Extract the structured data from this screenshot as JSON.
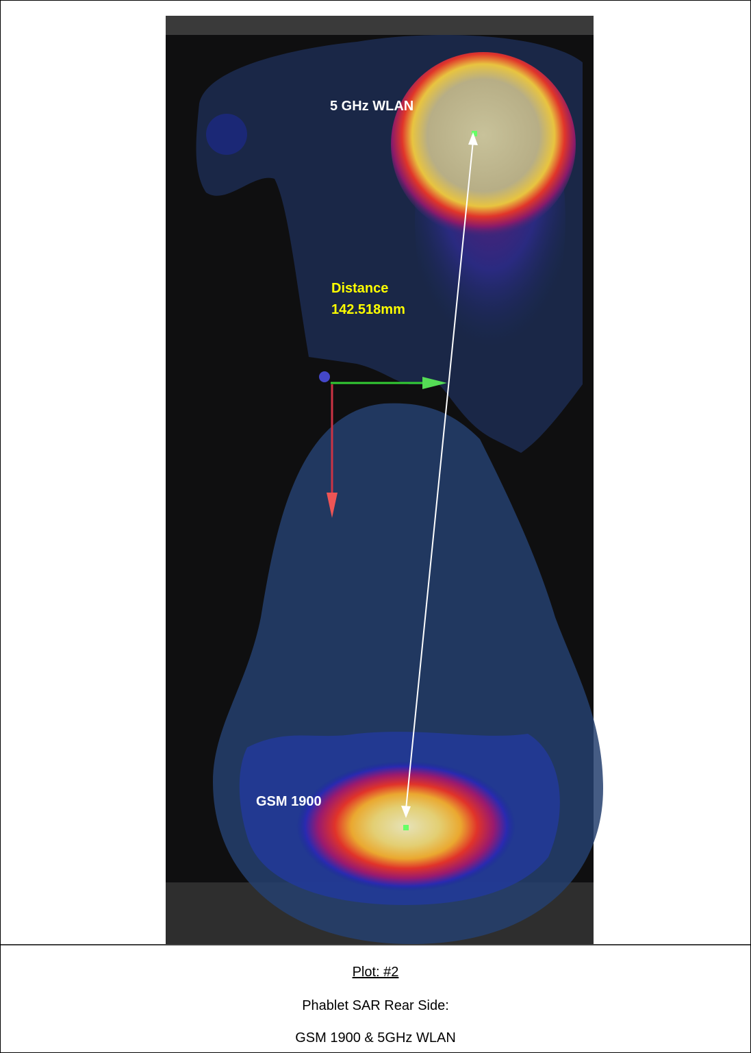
{
  "figure": {
    "labels": {
      "wlan": "5 GHz WLAN",
      "distance_title": "Distance",
      "distance_value": "142.518mm",
      "gsm": "GSM 1900"
    }
  },
  "caption": {
    "plot": "Plot: #2",
    "line1": "Phablet SAR Rear Side:",
    "line2": "GSM 1900 & 5GHz WLAN"
  }
}
